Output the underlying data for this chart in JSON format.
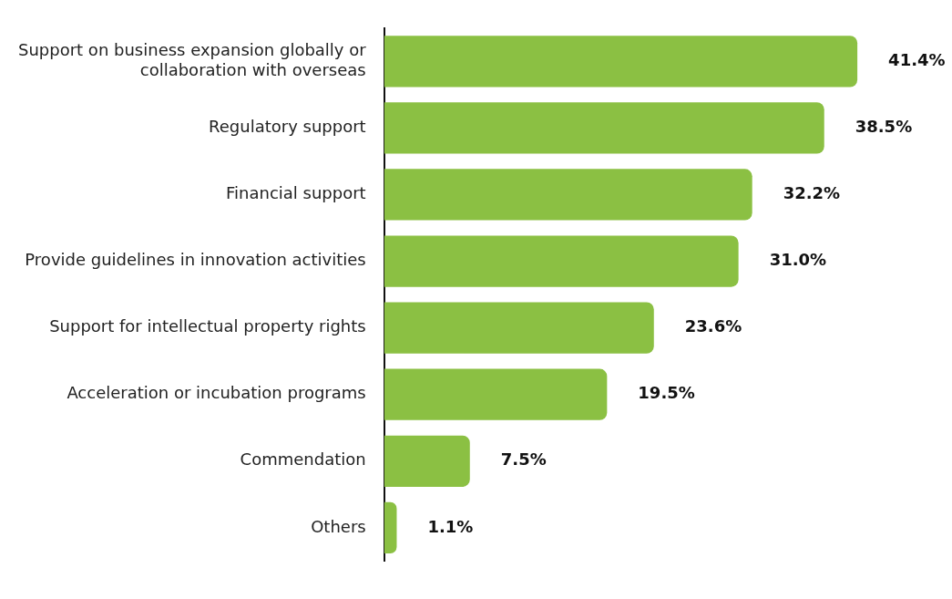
{
  "chart_data": {
    "type": "bar",
    "orientation": "horizontal",
    "categories": [
      "Support on business expansion globally or collaboration with overseas",
      "Regulatory support",
      "Financial support",
      "Provide guidelines in innovation activities",
      "Support for intellectual property rights",
      "Acceleration or incubation programs",
      "Commendation",
      "Others"
    ],
    "values": [
      41.4,
      38.5,
      32.2,
      31.0,
      23.6,
      19.5,
      7.5,
      1.1
    ],
    "value_labels": [
      "41.4%",
      "38.5%",
      "32.2%",
      "31.0%",
      "23.6%",
      "19.5%",
      "7.5%",
      "1.1%"
    ],
    "color": "#8bc043"
  }
}
